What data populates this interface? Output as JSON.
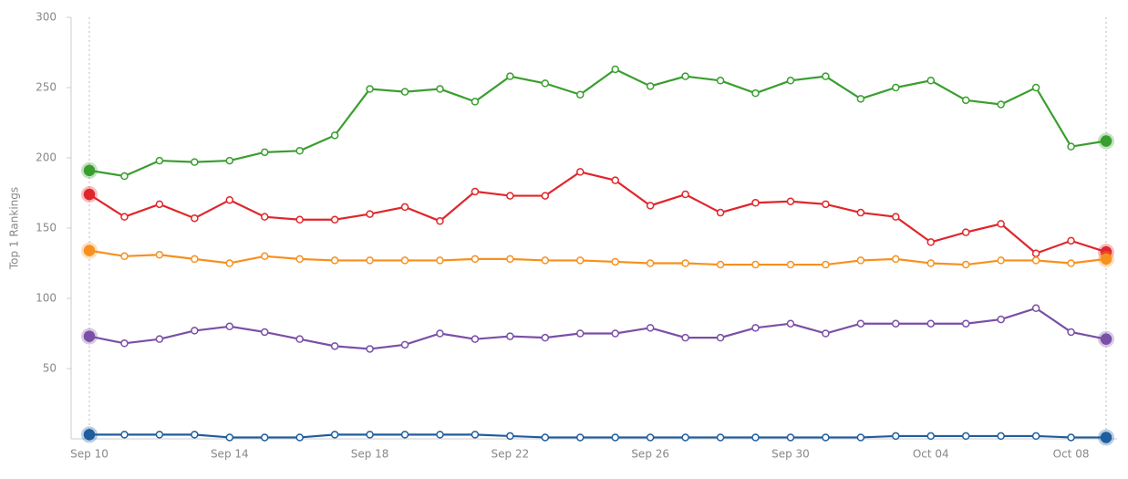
{
  "chart_data": {
    "type": "line",
    "y_label": "Top 1 Rankings",
    "categories": [
      "Sep 10",
      null,
      null,
      null,
      "Sep 14",
      null,
      null,
      null,
      "Sep 18",
      null,
      null,
      null,
      "Sep 22",
      null,
      null,
      null,
      "Sep 26",
      null,
      null,
      null,
      "Sep 30",
      null,
      null,
      null,
      "Oct 04",
      null,
      null,
      null,
      "Oct 08",
      null
    ],
    "ylim": [
      0,
      300
    ],
    "yticks": [
      50,
      100,
      150,
      200,
      250,
      300
    ],
    "series": [
      {
        "color": "#3a9e2f",
        "values": [
          191,
          187,
          198,
          197,
          198,
          204,
          205,
          216,
          249,
          247,
          249,
          240,
          258,
          253,
          245,
          263,
          251,
          258,
          255,
          246,
          255,
          258,
          242,
          250,
          255,
          241,
          238,
          250,
          208,
          212
        ]
      },
      {
        "color": "#e0262b",
        "values": [
          174,
          158,
          167,
          157,
          170,
          158,
          156,
          156,
          160,
          165,
          155,
          176,
          173,
          173,
          190,
          184,
          166,
          174,
          161,
          168,
          169,
          167,
          161,
          158,
          140,
          147,
          153,
          132,
          141,
          133
        ]
      },
      {
        "color": "#f7901e",
        "values": [
          134,
          130,
          131,
          128,
          125,
          130,
          128,
          127,
          127,
          127,
          127,
          128,
          128,
          127,
          127,
          126,
          125,
          125,
          124,
          124,
          124,
          124,
          127,
          128,
          125,
          124,
          127,
          127,
          125,
          128
        ]
      },
      {
        "color": "#7a4fa6",
        "values": [
          73,
          68,
          71,
          77,
          80,
          76,
          71,
          66,
          64,
          67,
          75,
          71,
          73,
          72,
          75,
          75,
          79,
          72,
          72,
          79,
          82,
          75,
          82,
          82,
          82,
          82,
          85,
          93,
          76,
          71
        ]
      },
      {
        "color": "#1f5d9e",
        "values": [
          3,
          3,
          3,
          3,
          1,
          1,
          1,
          3,
          3,
          3,
          3,
          3,
          2,
          1,
          1,
          1,
          1,
          1,
          1,
          1,
          1,
          1,
          1,
          2,
          2,
          2,
          2,
          2,
          1,
          1
        ]
      }
    ]
  }
}
